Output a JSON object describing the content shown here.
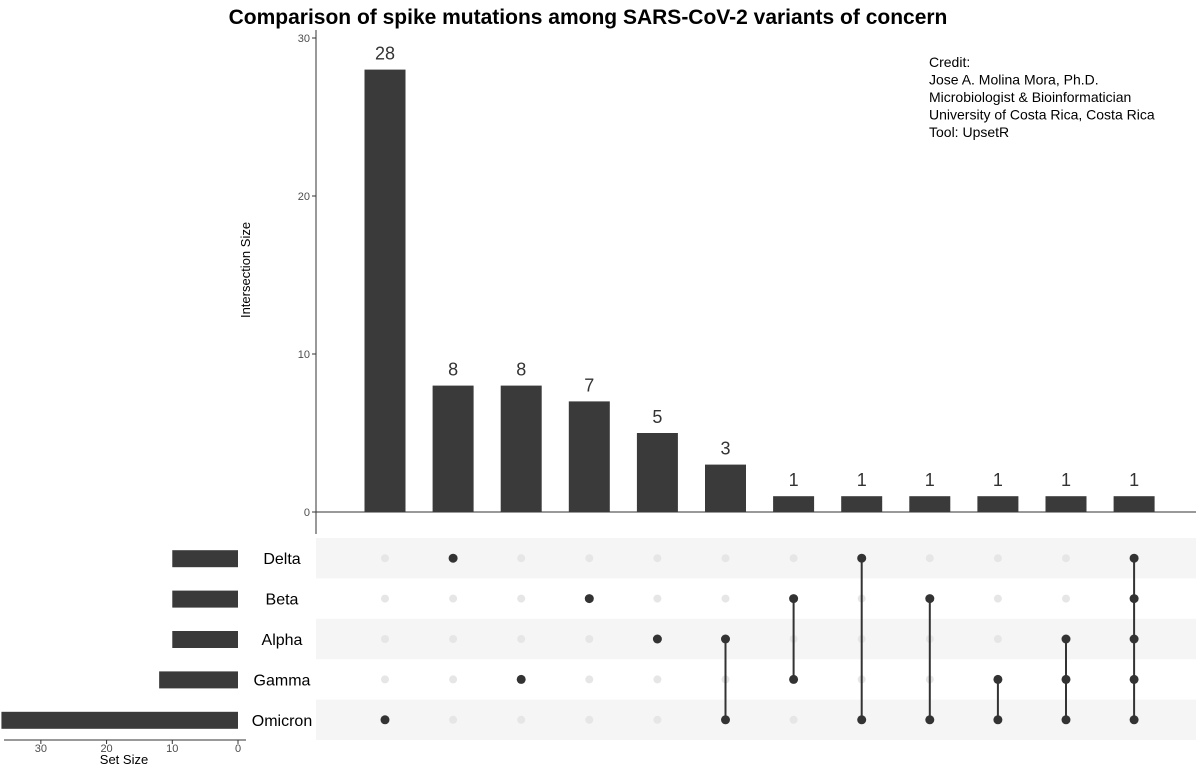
{
  "chart_data": {
    "type": "upset",
    "title": "Comparison of spike mutations among SARS-CoV-2 variants of concern",
    "ylabel": "Intersection Size",
    "set_size_label": "Set Size",
    "ylim": [
      0,
      30
    ],
    "yticks": [
      0,
      10,
      20,
      30
    ],
    "set_size_xlim": [
      0,
      35
    ],
    "set_size_ticks": [
      30,
      20,
      10,
      0
    ],
    "sets": [
      "Delta",
      "Beta",
      "Alpha",
      "Gamma",
      "Omicron"
    ],
    "set_sizes": [
      10,
      10,
      10,
      12,
      36
    ],
    "intersections": [
      {
        "members": [
          "Omicron"
        ],
        "size": 28
      },
      {
        "members": [
          "Delta"
        ],
        "size": 8
      },
      {
        "members": [
          "Gamma"
        ],
        "size": 8
      },
      {
        "members": [
          "Beta"
        ],
        "size": 7
      },
      {
        "members": [
          "Alpha"
        ],
        "size": 5
      },
      {
        "members": [
          "Alpha",
          "Omicron"
        ],
        "size": 3
      },
      {
        "members": [
          "Beta",
          "Gamma"
        ],
        "size": 1
      },
      {
        "members": [
          "Delta",
          "Omicron"
        ],
        "size": 1
      },
      {
        "members": [
          "Beta",
          "Omicron"
        ],
        "size": 1
      },
      {
        "members": [
          "Gamma",
          "Omicron"
        ],
        "size": 1
      },
      {
        "members": [
          "Alpha",
          "Gamma",
          "Omicron"
        ],
        "size": 1
      },
      {
        "members": [
          "Delta",
          "Beta",
          "Alpha",
          "Gamma",
          "Omicron"
        ],
        "size": 1
      }
    ],
    "credit": [
      "Credit:",
      "Jose A. Molina Mora, Ph.D.",
      "Microbiologist & Bioinformatician",
      "University of Costa Rica, Costa Rica",
      "Tool: UpsetR"
    ],
    "colors": {
      "bar": "#3a3a3a",
      "dot_active": "#333333",
      "dot_inactive": "#e6e6e6",
      "stripe": "#f5f5f5"
    }
  }
}
